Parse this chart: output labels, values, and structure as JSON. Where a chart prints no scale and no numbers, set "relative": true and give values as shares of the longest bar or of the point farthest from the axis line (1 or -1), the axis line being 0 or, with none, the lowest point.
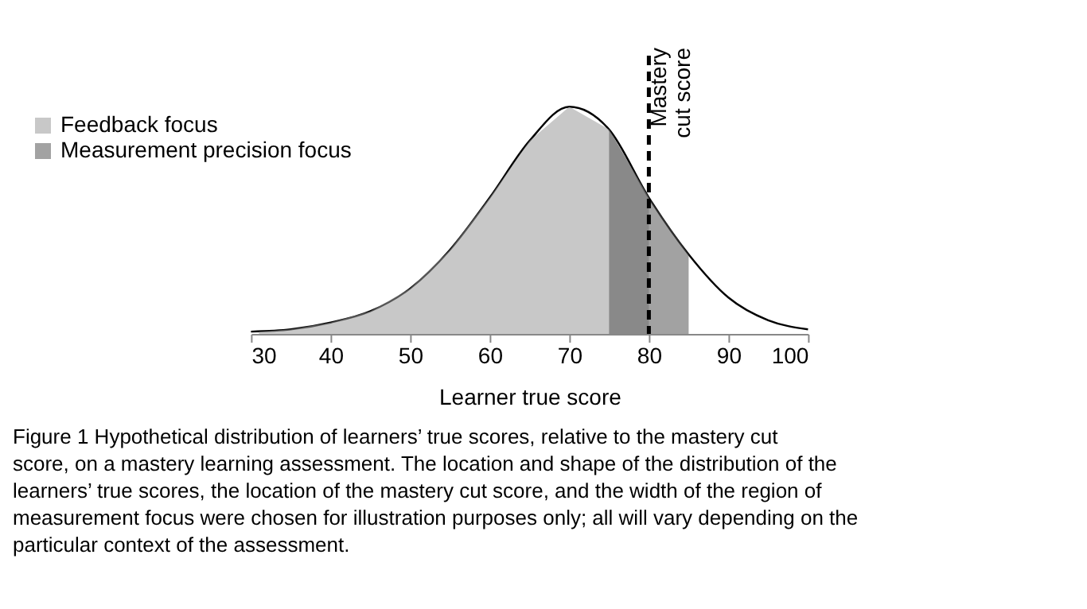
{
  "chart_data": {
    "type": "area",
    "relative": true,
    "xlabel": "Learner true score",
    "xlim": [
      30,
      100
    ],
    "xticks": [
      30,
      40,
      50,
      60,
      70,
      80,
      90,
      100
    ],
    "grid": false,
    "legend": "top left",
    "series": [
      {
        "type": "line",
        "color": "#000000",
        "x": [
          30,
          35,
          40,
          45,
          50,
          55,
          60,
          65,
          70,
          75,
          80,
          85,
          90,
          95,
          100
        ],
        "values": [
          0.01,
          0.02,
          0.05,
          0.1,
          0.2,
          0.37,
          0.6,
          0.85,
          1,
          0.9,
          0.6,
          0.35,
          0.16,
          0.06,
          0.02
        ]
      },
      {
        "name": "Feedback focus",
        "color": "#9a9a9a",
        "x": [
          31,
          35,
          40,
          45,
          50,
          55,
          60,
          65,
          70,
          75,
          80
        ],
        "values": [
          0.01,
          0.02,
          0.05,
          0.1,
          0.2,
          0.37,
          0.6,
          0.85,
          1,
          0.9,
          0.6
        ]
      },
      {
        "name": "Measurement precision focus",
        "color": "#555555",
        "x": [
          75,
          80,
          85
        ],
        "values": [
          0.9,
          0.6,
          0.35
        ]
      }
    ],
    "ref_lines": [
      {
        "axis": "x",
        "value": 80,
        "label": "Mastery cut score",
        "line_style": "dashed",
        "color": "#000000"
      }
    ],
    "annotations": [
      "Figure 1 Hypothetical distribution of learners’ true scores, relative to the mastery cut score, on a mastery learning assessment. The location and shape of the distribution of the learners’ true scores, the location of the mastery cut score, and the width of the region of measurement focus were chosen for illustration purposes only; all will vary depending on the particular context of the assessment."
    ]
  }
}
